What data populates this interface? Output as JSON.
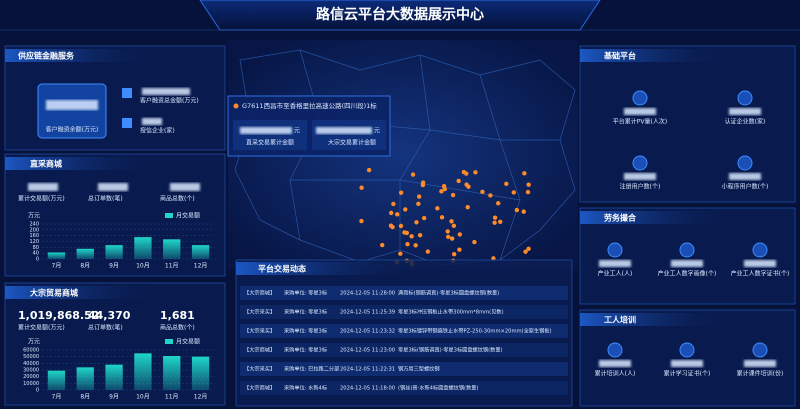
{
  "header": {
    "title": "路信云平台大数据展示中心"
  },
  "supply_chain": {
    "title": "供应链金融服务",
    "balance_label": "客户融资余额(万元)",
    "total_label": "客户融资总金额(万元)",
    "credit_label": "授信企业(家)"
  },
  "direct_mall": {
    "title": "直采商城",
    "stats": [
      {
        "label": "累计交易额(万元)"
      },
      {
        "label": "总订单数(笔)"
      },
      {
        "label": "商品总数(个)"
      }
    ],
    "chart": {
      "type": "bar",
      "y_label": "万元",
      "legend": "月交易额",
      "color": "#1fd6c8",
      "categories": [
        "7月",
        "8月",
        "9月",
        "10月",
        "11月",
        "12月"
      ],
      "values": [
        45,
        70,
        95,
        150,
        135,
        95
      ],
      "ylim": [
        0,
        240
      ],
      "yticks": [
        0,
        40,
        80,
        120,
        160,
        200,
        240
      ]
    }
  },
  "bulk_mall": {
    "title": "大宗贸易商城",
    "stats": [
      {
        "value": "1,019,868.52",
        "label": "累计交易额(万元)"
      },
      {
        "value": "44,370",
        "label": "总订单数(笔)"
      },
      {
        "value": "1,681",
        "label": "商品总数(个)"
      }
    ],
    "chart": {
      "type": "bar",
      "y_label": "万元",
      "legend": "月交易额",
      "color": "#1fd6c8",
      "categories": [
        "7月",
        "8月",
        "9月",
        "10月",
        "11月",
        "12月"
      ],
      "values": [
        29000,
        34000,
        38000,
        55000,
        51000,
        50000
      ],
      "ylim": [
        0,
        60000
      ],
      "yticks": [
        0,
        10000,
        20000,
        30000,
        40000,
        50000,
        60000
      ]
    }
  },
  "map_panel": {
    "project": "G7611西昌市至香格里拉高速公路(四川段)1标",
    "unit_1": "元",
    "label_1": "直采交易累计金额",
    "unit_2": "元",
    "label_2": "大宗交易累计金额"
  },
  "trade": {
    "title": "平台交易动态",
    "rows": [
      [
        "【大宗商城】",
        "采购单位: 零星3标",
        "2024-12-05 11:28:00",
        "满商标(钢筋调直)·零星3标圆盘螺纹钢(数量)"
      ],
      [
        "【大宗采买】",
        "采购单位: 零星3标",
        "2024-12-05 11:25:39",
        "零星3标冲压钢板止水带300mm*8mm(见数)"
      ],
      [
        "【大宗采买】",
        "采购单位: 零星3标",
        "2024-12-05 11:23:32",
        "零星3标镀锌带钢扁铁止水带PZ-250-30mm×20mm(全原生钢板)"
      ],
      [
        "【大宗商城】",
        "采购单位: 零星3标",
        "2024-12-05 11:23:00",
        "零星3标(钢筋调直)·零星3标圆盘螺纹钢(数量)"
      ],
      [
        "【大宗采买】",
        "采购单位: 巴拉路二分部",
        "2024-12-05 11:22:31",
        "钢万用三型螺纹钢"
      ],
      [
        "【大宗商城】",
        "采购单位: 水新4标",
        "2024-12-05 11:18:00",
        "(钢丝)普·水新4标圆盘螺纹钢(数量)"
      ]
    ]
  },
  "base_platform": {
    "title": "基础平台",
    "items": [
      "平台累计PV量(人次)",
      "认证企业数(家)",
      "注册用户数(个)",
      "小程序用户数(个)"
    ]
  },
  "labor": {
    "title": "劳务撮合",
    "items": [
      "产业工人(人)",
      "产业工人数字画像(个)",
      "产业工人数字证书(个)"
    ]
  },
  "training": {
    "title": "工人培训",
    "items": [
      "累计培训人(人)",
      "累计学习证书(个)",
      "累计课件培训(份)"
    ]
  }
}
